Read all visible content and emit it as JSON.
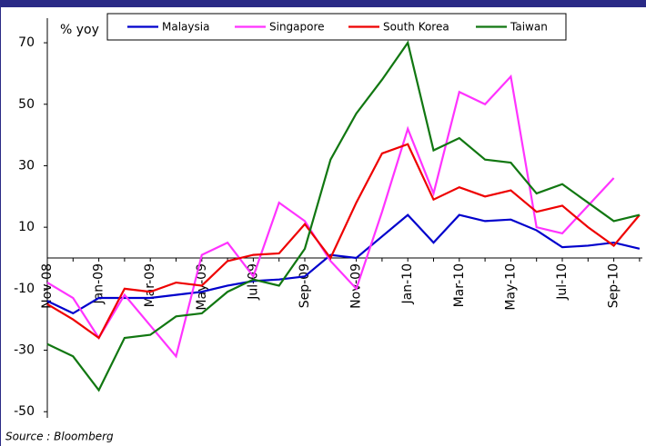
{
  "chart_data": {
    "type": "line",
    "y_axis_label": "% yoy",
    "source": "Source : Bloomberg",
    "categories": [
      "Nov-08",
      null,
      "Jan-09",
      null,
      "Mar-09",
      null,
      "May-09",
      null,
      "Jul-09",
      null,
      "Sep-09",
      null,
      "Nov-09",
      null,
      "Jan-10",
      null,
      "Mar-10",
      null,
      "May-10",
      null,
      "Jul-10",
      null,
      "Sep-10",
      null
    ],
    "series": [
      {
        "name": "Malaysia",
        "color": "#0000cc",
        "values": [
          -14,
          -18,
          -13,
          -13,
          -13,
          -12,
          -11,
          -9,
          -7.5,
          -7,
          -6,
          1,
          0,
          7,
          14,
          5,
          14,
          12,
          12.5,
          9,
          3.5,
          4,
          5,
          3
        ]
      },
      {
        "name": "Singapore",
        "color": "#ff33ff",
        "values": [
          -8,
          -13,
          -26,
          -12,
          -22,
          -32,
          1,
          5,
          -6,
          18,
          12,
          -1,
          -10,
          15,
          42,
          21,
          54,
          50,
          59,
          10,
          8,
          17,
          26,
          null
        ]
      },
      {
        "name": "South Korea",
        "color": "#ee0000",
        "values": [
          -15,
          -20,
          -26,
          -10,
          -11,
          -8,
          -9,
          -1,
          1,
          1.5,
          11,
          0,
          18,
          34,
          37,
          19,
          23,
          20,
          22,
          15,
          17,
          10,
          4,
          14
        ]
      },
      {
        "name": "Taiwan",
        "color": "#117711",
        "values": [
          -28,
          -32,
          -43,
          -26,
          -25,
          -19,
          -18,
          -11,
          -7,
          -9,
          3,
          32,
          47,
          58,
          70,
          35,
          39,
          32,
          31,
          21,
          24,
          18,
          12,
          14
        ]
      }
    ],
    "ylim": [
      -52,
      78
    ],
    "yticks": [
      -50,
      -30,
      -10,
      10,
      30,
      50,
      70
    ],
    "legend": "top"
  }
}
